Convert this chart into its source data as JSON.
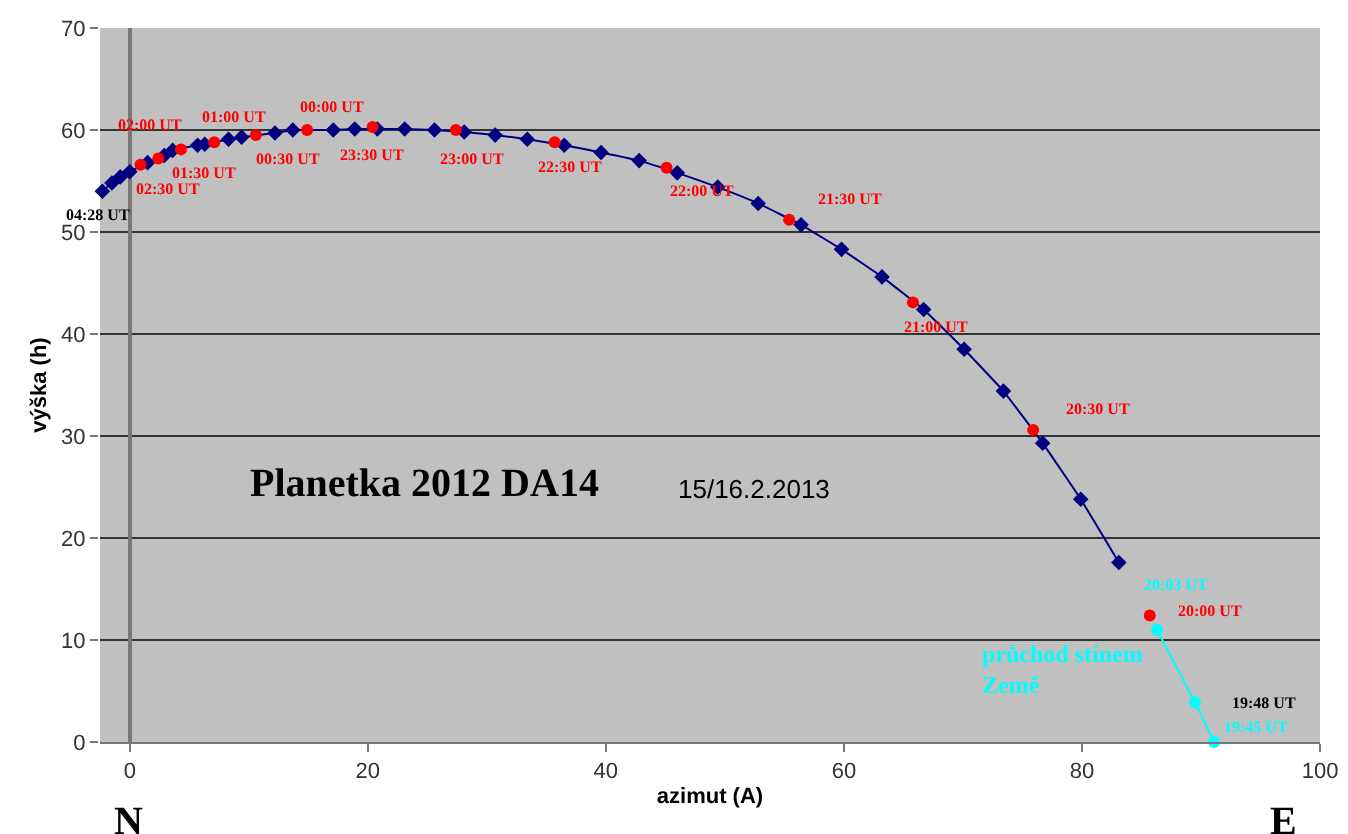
{
  "chart_data": {
    "type": "line",
    "xlabel": "azimut (A)",
    "ylabel": "výška (h)",
    "xlim": [
      -2.5,
      100
    ],
    "xticks": [
      0,
      20,
      40,
      60,
      80,
      100
    ],
    "ylim": [
      0,
      70
    ],
    "yticks": [
      0,
      10,
      20,
      30,
      40,
      50,
      60,
      70
    ],
    "grid": "y",
    "series": [
      {
        "marker": "diamond",
        "color": "#000080",
        "x": [
          -2.3,
          -1.5,
          -0.8,
          0,
          1.5,
          2.9,
          3.6,
          5.7,
          6.3,
          8.3,
          9.4,
          12.2,
          13.7,
          17.1,
          18.9,
          20.8,
          23.1,
          25.6,
          28.1,
          30.7,
          33.4,
          36.5,
          39.6,
          42.8,
          46,
          49.4,
          52.8,
          56.4,
          59.8,
          63.2,
          66.7,
          70.1,
          73.4,
          76.7,
          79.9,
          83.1
        ],
        "values": [
          54.0,
          54.8,
          55.4,
          55.9,
          56.8,
          57.5,
          58.0,
          58.5,
          58.6,
          59.1,
          59.3,
          59.7,
          60.0,
          60.0,
          60.1,
          60.1,
          60.1,
          60.0,
          59.8,
          59.5,
          59.1,
          58.5,
          57.8,
          57.0,
          55.8,
          54.4,
          52.8,
          50.7,
          48.3,
          45.6,
          42.4,
          38.5,
          34.4,
          29.3,
          23.8,
          17.6
        ]
      },
      {
        "type": "scatter",
        "marker": "circle",
        "color": "#ff0000",
        "x": [
          0.9,
          2.4,
          4.3,
          7.1,
          10.6,
          14.9,
          20.4,
          27.4,
          35.7,
          45.1,
          55.4,
          65.8,
          75.9,
          85.7
        ],
        "values": [
          56.6,
          57.2,
          58.1,
          58.8,
          59.5,
          60.0,
          60.3,
          60.0,
          58.8,
          56.3,
          51.2,
          43.1,
          30.6,
          12.4
        ]
      },
      {
        "type": "line",
        "marker": "circle",
        "color": "#00ffff",
        "x": [
          86.3,
          89.5,
          91.1
        ],
        "values": [
          11.0,
          3.9,
          0
        ]
      }
    ],
    "annotations": [
      {
        "text": "04:28 UT",
        "x": -2.3,
        "y": 54.0
      },
      {
        "text": "02:30 UT",
        "x": 0.9,
        "y": 56.6
      },
      {
        "text": "02:00 UT",
        "x": 2.4,
        "y": 57.2
      },
      {
        "text": "01:30 UT",
        "x": 4.3,
        "y": 58.1
      },
      {
        "text": "01:00 UT",
        "x": 7.1,
        "y": 58.8
      },
      {
        "text": "00:30 UT",
        "x": 10.6,
        "y": 59.5
      },
      {
        "text": "00:00 UT",
        "x": 14.9,
        "y": 60.0
      },
      {
        "text": "23:30 UT",
        "x": 20.4,
        "y": 60.3
      },
      {
        "text": "23:00 UT",
        "x": 27.4,
        "y": 60.0
      },
      {
        "text": "22:30 UT",
        "x": 35.7,
        "y": 58.8
      },
      {
        "text": "22:00 UT",
        "x": 45.1,
        "y": 56.3
      },
      {
        "text": "21:30 UT",
        "x": 55.4,
        "y": 51.2
      },
      {
        "text": "21:00 UT",
        "x": 65.8,
        "y": 43.1
      },
      {
        "text": "20:30 UT",
        "x": 75.9,
        "y": 30.6
      },
      {
        "text": "20:00 UT",
        "x": 85.7,
        "y": 12.4
      },
      {
        "text": "20:03 UT",
        "x": 86.3,
        "y": 11.0
      },
      {
        "text": "19:48 UT",
        "x": 89.5,
        "y": 3.9
      },
      {
        "text": "19:45 UT",
        "x": 89.5,
        "y": 3.9
      },
      "Planetka 2012 DA14",
      "15/16.2.2013",
      "průchod stínem Země",
      "N",
      "E"
    ]
  }
}
